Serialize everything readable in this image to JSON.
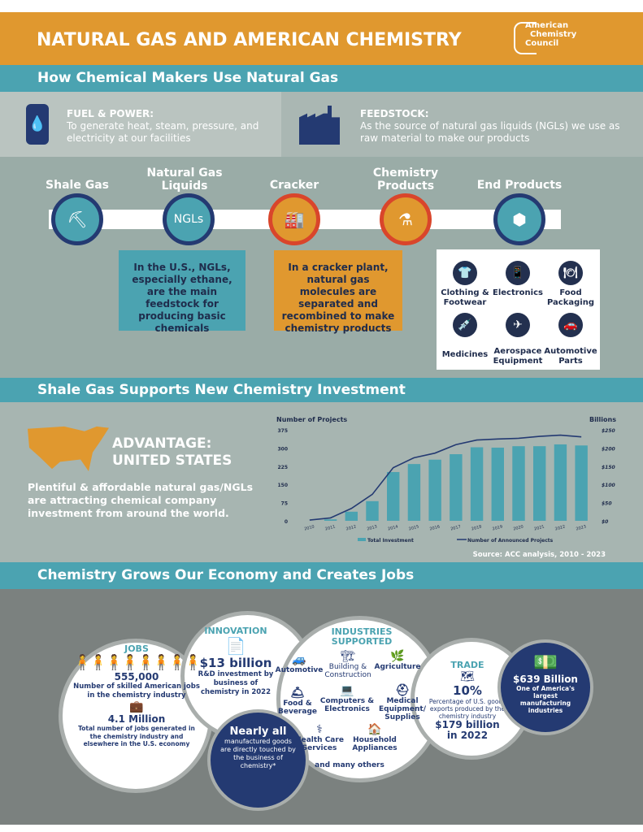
{
  "header": {
    "title": "NATURAL GAS AND AMERICAN CHEMISTRY",
    "logo_text": [
      "American",
      "Chemistry",
      "Council"
    ]
  },
  "section1": {
    "title": "How Chemical Makers Use Natural Gas",
    "fuel": {
      "heading": "FUEL & POWER:",
      "text": "To generate heat, steam, pressure, and electricity at our facilities"
    },
    "feedstock": {
      "heading": "FEEDSTOCK:",
      "text": "As the source of natural gas liquids (NGLs) we use as raw material to make our products"
    },
    "flow": [
      {
        "label": "Shale Gas"
      },
      {
        "label": "Natural Gas Liquids",
        "icon_text": "NGLs"
      },
      {
        "label": "Cracker"
      },
      {
        "label": "Chemistry Products"
      },
      {
        "label": "End Products"
      }
    ],
    "ngl_box": "In the U.S., NGLs, especially ethane, are the main feedstock for producing basic chemicals",
    "cracker_box": "In a cracker plant, natural gas molecules are separated and recombined to make chemistry products",
    "end_products": [
      "Clothing & Footwear",
      "Electronics",
      "Food Packaging",
      "Medicines",
      "Aerospace Equipment",
      "Automotive Parts"
    ]
  },
  "section2": {
    "title": "Shale Gas Supports New Chemistry Investment",
    "advantage": "ADVANTAGE: UNITED STATES",
    "text": "Plentiful & affordable natural gas/NGLs are attracting chemical company investment from around the world.",
    "source": "Source: ACC analysis, 2010 - 2023"
  },
  "chart_data": {
    "type": "bar",
    "title": "",
    "ylabel": "Number of Projects",
    "y2label": "Billions",
    "categories": [
      "2010",
      "2011",
      "2012",
      "2013",
      "2014",
      "2015",
      "2016",
      "2017",
      "2018",
      "2019",
      "2020",
      "2021",
      "2022",
      "2023"
    ],
    "series": [
      {
        "name": "Total Investment",
        "type": "bar",
        "axis": "right",
        "values": [
          0,
          4,
          25,
          54,
          134,
          156,
          168,
          183,
          202,
          201,
          205,
          205,
          210,
          207
        ]
      },
      {
        "name": "Number of Announced Projects",
        "type": "line",
        "axis": "left",
        "values": [
          3,
          12,
          51,
          109,
          219,
          260,
          279,
          314,
          333,
          337,
          340,
          348,
          353,
          346
        ]
      }
    ],
    "ylim": [
      0,
      375
    ],
    "y2lim": [
      0,
      250
    ],
    "yticks": [
      "0",
      "75",
      "150",
      "225",
      "300",
      "375"
    ],
    "y2ticks": [
      "$0",
      "$50",
      "$100",
      "$150",
      "$200",
      "$250"
    ],
    "legend": "bottom",
    "colors": {
      "bar": "#4ba3b1",
      "line": "#243a72"
    }
  },
  "section3": {
    "title": "Chemistry Grows Our Economy and Creates Jobs",
    "jobs": {
      "heading": "JOBS",
      "value": "555,000",
      "desc": "Number of skilled American jobs in the chemistry industry",
      "value2": "4.1 Million",
      "desc2": "Total number of jobs generated in the chemistry industry and elsewhere in the U.S. economy"
    },
    "innovation": {
      "heading": "INNOVATION",
      "value": "$13 billion",
      "desc": "R&D investment by business of chemistry in 2022"
    },
    "nearly": {
      "heading": "Nearly all",
      "desc": "manufactured goods are directly touched by the business of chemistry*"
    },
    "industries": {
      "heading": "INDUSTRIES SUPPORTED",
      "items": [
        "Automotive",
        "Building & Construction",
        "Agriculture",
        "Food & Beverage",
        "Computers & Electronics",
        "Medical Equipment/ Supplies",
        "Health Care Services",
        "Household Appliances"
      ],
      "more": "and many others"
    },
    "trade": {
      "heading": "TRADE",
      "value": "10%",
      "desc": "Percentage of U.S. goods exports produced by the chemistry industry",
      "value2": "$179 billion in 2022"
    },
    "size": {
      "value": "$639 Billion",
      "desc": "One of America's largest manufacturing industries"
    }
  }
}
